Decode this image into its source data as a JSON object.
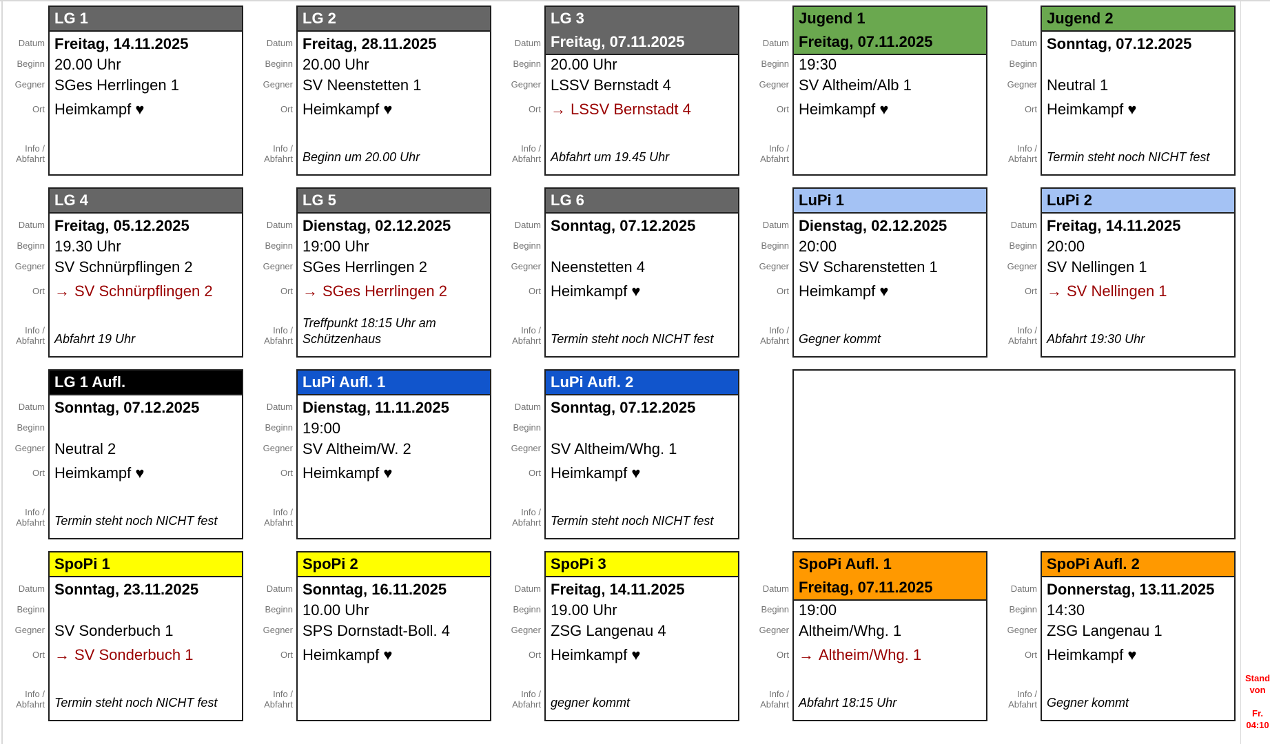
{
  "row_labels": {
    "datum": "Datum",
    "beginn": "Beginn",
    "gegner": "Gegner",
    "ort": "Ort",
    "info": "Info /\nAbfahrt"
  },
  "symbols": {
    "away_arrow": "→",
    "home_heart": "♥"
  },
  "palette": {
    "lg": {
      "bg": "#666666",
      "fg": "#ffffff"
    },
    "jugend": {
      "bg": "#6aa84f",
      "fg": "#000000"
    },
    "lupi": {
      "bg": "#a4c2f4",
      "fg": "#000000"
    },
    "lg_aufl": {
      "bg": "#000000",
      "fg": "#ffffff"
    },
    "lupi_aufl": {
      "bg": "#1155cc",
      "fg": "#ffffff"
    },
    "spopi": {
      "bg": "#ffff00",
      "fg": "#000000"
    },
    "spopi_aufl": {
      "bg": "#ff9900",
      "fg": "#000000"
    },
    "away_red": "#990000",
    "stand_red": "#ff0000",
    "label_gray": "#757575",
    "border_dark": "#1f1f1f"
  },
  "cards": [
    {
      "row": 1,
      "col": 1,
      "style": "lg",
      "title": "LG 1",
      "date_highlight": false,
      "date": "Freitag, 14.11.2025",
      "time": "20.00 Uhr",
      "opponent": "SGes Herrlingen 1",
      "ort": {
        "away": false,
        "text": "Heimkampf ♥"
      },
      "info": ""
    },
    {
      "row": 1,
      "col": 2,
      "style": "lg",
      "title": "LG 2",
      "date_highlight": false,
      "date": "Freitag, 28.11.2025",
      "time": "20.00 Uhr",
      "opponent": "SV Neenstetten 1",
      "ort": {
        "away": false,
        "text": "Heimkampf ♥"
      },
      "info": "Beginn um 20.00 Uhr"
    },
    {
      "row": 1,
      "col": 3,
      "style": "lg",
      "title": "LG 3",
      "date_highlight": true,
      "date": "Freitag, 07.11.2025",
      "time": "20.00 Uhr",
      "opponent": "LSSV Bernstadt 4",
      "ort": {
        "away": true,
        "text": "LSSV Bernstadt 4"
      },
      "info": "Abfahrt um 19.45 Uhr"
    },
    {
      "row": 1,
      "col": 4,
      "style": "jugend",
      "title": "Jugend 1",
      "date_highlight": true,
      "date": "Freitag, 07.11.2025",
      "time": "19:30",
      "opponent": "SV Altheim/Alb 1",
      "ort": {
        "away": false,
        "text": "Heimkampf ♥"
      },
      "info": ""
    },
    {
      "row": 1,
      "col": 5,
      "style": "jugend",
      "title": "Jugend 2",
      "date_highlight": false,
      "date": "Sonntag, 07.12.2025",
      "time": "",
      "opponent": "Neutral 1",
      "ort": {
        "away": false,
        "text": "Heimkampf ♥"
      },
      "info": "Termin steht noch NICHT fest"
    },
    {
      "row": 2,
      "col": 1,
      "style": "lg",
      "title": "LG 4",
      "date_highlight": false,
      "date": "Freitag, 05.12.2025",
      "time": "19.30 Uhr",
      "opponent": "SV Schnürpflingen 2",
      "ort": {
        "away": true,
        "text": "SV Schnürpflingen 2"
      },
      "info": "Abfahrt 19 Uhr"
    },
    {
      "row": 2,
      "col": 2,
      "style": "lg",
      "title": "LG 5",
      "date_highlight": false,
      "date": "Dienstag, 02.12.2025",
      "time": "19:00 Uhr",
      "opponent": "SGes Herrlingen 2",
      "ort": {
        "away": true,
        "text": "SGes Herrlingen 2"
      },
      "info": "Treffpunkt 18:15 Uhr am Schützenhaus"
    },
    {
      "row": 2,
      "col": 3,
      "style": "lg",
      "title": "LG 6",
      "date_highlight": false,
      "date": "Sonntag, 07.12.2025",
      "time": "",
      "opponent": "Neenstetten 4",
      "ort": {
        "away": false,
        "text": "Heimkampf ♥"
      },
      "info": "Termin steht noch NICHT fest"
    },
    {
      "row": 2,
      "col": 4,
      "style": "lupi",
      "title": "LuPi 1",
      "date_highlight": false,
      "date": "Dienstag, 02.12.2025",
      "time": "20:00",
      "opponent": "SV Scharenstetten 1",
      "ort": {
        "away": false,
        "text": "Heimkampf ♥"
      },
      "info": "Gegner kommt"
    },
    {
      "row": 2,
      "col": 5,
      "style": "lupi",
      "title": "LuPi 2",
      "date_highlight": false,
      "date": "Freitag, 14.11.2025",
      "time": "20:00",
      "opponent": "SV Nellingen 1",
      "ort": {
        "away": true,
        "text": "SV Nellingen 1"
      },
      "info": "Abfahrt 19:30 Uhr"
    },
    {
      "row": 3,
      "col": 1,
      "style": "lg_aufl",
      "title": "LG 1 Aufl.",
      "date_highlight": false,
      "date": "Sonntag, 07.12.2025",
      "time": "",
      "opponent": "Neutral 2",
      "ort": {
        "away": false,
        "text": "Heimkampf ♥"
      },
      "info": "Termin steht noch NICHT fest"
    },
    {
      "row": 3,
      "col": 2,
      "style": "lupi_aufl",
      "title": "LuPi Aufl. 1",
      "date_highlight": false,
      "date": "Dienstag, 11.11.2025",
      "time": "19:00",
      "opponent": "SV Altheim/W. 2",
      "ort": {
        "away": false,
        "text": "Heimkampf ♥"
      },
      "info": ""
    },
    {
      "row": 3,
      "col": 3,
      "style": "lupi_aufl",
      "title": "LuPi Aufl. 2",
      "date_highlight": false,
      "date": "Sonntag, 07.12.2025",
      "time": "",
      "opponent": "SV Altheim/Whg. 1",
      "ort": {
        "away": false,
        "text": "Heimkampf ♥"
      },
      "info": "Termin steht noch NICHT fest"
    },
    {
      "row": 4,
      "col": 1,
      "style": "spopi",
      "title": "SpoPi 1",
      "date_highlight": false,
      "date": "Sonntag, 23.11.2025",
      "time": "",
      "opponent": "SV Sonderbuch 1",
      "ort": {
        "away": true,
        "text": "SV Sonderbuch 1"
      },
      "info": "Termin steht noch NICHT fest"
    },
    {
      "row": 4,
      "col": 2,
      "style": "spopi",
      "title": "SpoPi 2",
      "date_highlight": false,
      "date": "Sonntag, 16.11.2025",
      "time": "10.00 Uhr",
      "opponent": "SPS Dornstadt-Boll. 4",
      "ort": {
        "away": false,
        "text": "Heimkampf ♥"
      },
      "info": ""
    },
    {
      "row": 4,
      "col": 3,
      "style": "spopi",
      "title": "SpoPi 3",
      "date_highlight": false,
      "date": "Freitag, 14.11.2025",
      "time": "19.00 Uhr",
      "opponent": "ZSG Langenau 4",
      "ort": {
        "away": false,
        "text": "Heimkampf ♥"
      },
      "info": "gegner kommt"
    },
    {
      "row": 4,
      "col": 4,
      "style": "spopi_aufl",
      "title": "SpoPi Aufl. 1",
      "date_highlight": true,
      "date": "Freitag, 07.11.2025",
      "time": "19:00",
      "opponent": "Altheim/Whg. 1",
      "ort": {
        "away": true,
        "text": "Altheim/Whg. 1"
      },
      "info": "Abfahrt 18:15 Uhr"
    },
    {
      "row": 4,
      "col": 5,
      "style": "spopi_aufl",
      "title": "SpoPi Aufl. 2",
      "date_highlight": false,
      "date": "Donnerstag, 13.11.2025",
      "time": "14:30",
      "opponent": "ZSG Langenau 1",
      "ort": {
        "away": false,
        "text": "Heimkampf ♥"
      },
      "info": "Gegner kommt"
    }
  ],
  "empty_region": {
    "row": 3,
    "col_start": 4,
    "col_end": 5
  },
  "stand_note": {
    "text": "Stand\nvon\n\nFr.\n04:10"
  }
}
